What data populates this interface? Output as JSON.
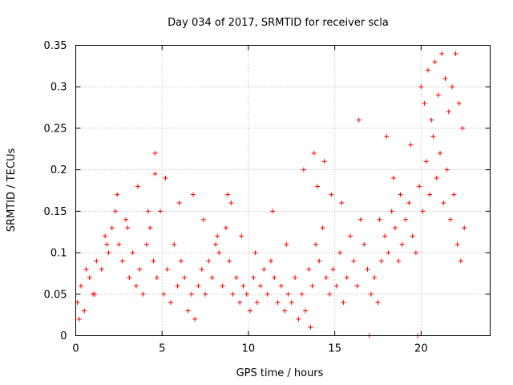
{
  "chart_data": {
    "type": "scatter",
    "title": "Day 034 of 2017, SRMTID for receiver scla",
    "xlabel": "GPS time / hours",
    "ylabel": "SRMTID / TECUs",
    "xlim": [
      0,
      24
    ],
    "ylim": [
      0,
      0.35
    ],
    "x_ticks": [
      0,
      5,
      10,
      15,
      20
    ],
    "x_tick_labels": [
      "0",
      "5",
      "10",
      "15",
      "20"
    ],
    "y_ticks": [
      0,
      0.05,
      0.1,
      0.15,
      0.2,
      0.25,
      0.3,
      0.35
    ],
    "y_tick_labels": [
      "0",
      "0.05",
      "0.1",
      "0.15",
      "0.2",
      "0.25",
      "0.3",
      "0.35"
    ],
    "grid": true,
    "marker": "plus",
    "marker_color": "#ff0000",
    "series": [
      {
        "name": "SRMTID",
        "color": "#ff0000",
        "x": [
          0.1,
          0.3,
          0.5,
          0.8,
          1.0,
          1.2,
          1.5,
          1.7,
          1.9,
          2.1,
          2.3,
          2.5,
          2.7,
          2.9,
          3.1,
          3.3,
          3.5,
          3.7,
          3.9,
          4.1,
          4.3,
          4.5,
          4.7,
          4.9,
          5.1,
          5.3,
          5.5,
          5.7,
          5.9,
          6.1,
          6.3,
          6.5,
          6.7,
          6.9,
          7.1,
          7.3,
          7.5,
          7.7,
          7.9,
          8.1,
          8.3,
          8.5,
          8.7,
          8.9,
          9.1,
          9.3,
          9.5,
          9.7,
          9.9,
          10.1,
          10.3,
          10.5,
          10.7,
          10.9,
          11.1,
          11.3,
          11.5,
          11.7,
          11.9,
          12.1,
          12.3,
          12.5,
          12.7,
          12.9,
          13.1,
          13.3,
          13.5,
          13.7,
          13.9,
          14.1,
          14.3,
          14.5,
          14.7,
          14.9,
          15.1,
          15.3,
          15.5,
          15.7,
          15.9,
          16.1,
          16.3,
          16.5,
          16.7,
          16.9,
          17.1,
          17.3,
          17.5,
          17.7,
          17.9,
          18.1,
          18.3,
          18.5,
          18.7,
          18.9,
          19.1,
          19.3,
          19.5,
          19.7,
          19.9,
          20.1,
          20.3,
          20.5,
          20.7,
          20.9,
          21.1,
          21.3,
          21.5,
          21.7,
          21.9,
          22.1,
          22.3,
          22.5,
          0.2,
          0.6,
          1.1,
          1.8,
          2.4,
          3.0,
          3.6,
          4.2,
          4.6,
          4.6,
          5.2,
          6.0,
          6.8,
          7.4,
          8.2,
          8.8,
          9.0,
          9.6,
          10.4,
          11.4,
          12.2,
          13.2,
          13.6,
          13.8,
          14.0,
          14.4,
          14.8,
          15.4,
          16.4,
          17.0,
          17.6,
          18.0,
          18.4,
          18.8,
          19.4,
          19.8,
          20.0,
          20.2,
          20.4,
          20.6,
          20.8,
          21.0,
          21.2,
          21.4,
          21.6,
          21.8,
          22.0,
          22.2,
          22.4
        ],
        "y": [
          0.04,
          0.06,
          0.03,
          0.07,
          0.05,
          0.09,
          0.08,
          0.12,
          0.1,
          0.13,
          0.15,
          0.11,
          0.09,
          0.14,
          0.07,
          0.1,
          0.06,
          0.08,
          0.05,
          0.11,
          0.13,
          0.09,
          0.07,
          0.15,
          0.05,
          0.08,
          0.04,
          0.11,
          0.06,
          0.09,
          0.07,
          0.03,
          0.05,
          0.02,
          0.06,
          0.08,
          0.05,
          0.09,
          0.07,
          0.11,
          0.1,
          0.06,
          0.13,
          0.09,
          0.05,
          0.07,
          0.04,
          0.06,
          0.05,
          0.03,
          0.07,
          0.04,
          0.06,
          0.08,
          0.05,
          0.09,
          0.07,
          0.04,
          0.06,
          0.03,
          0.05,
          0.04,
          0.07,
          0.02,
          0.05,
          0.03,
          0.08,
          0.06,
          0.11,
          0.09,
          0.13,
          0.07,
          0.05,
          0.08,
          0.06,
          0.1,
          0.04,
          0.07,
          0.12,
          0.09,
          0.06,
          0.14,
          0.11,
          0.08,
          0.05,
          0.07,
          0.04,
          0.09,
          0.12,
          0.1,
          0.15,
          0.13,
          0.09,
          0.11,
          0.14,
          0.16,
          0.12,
          0.1,
          0.18,
          0.15,
          0.21,
          0.17,
          0.24,
          0.19,
          0.22,
          0.16,
          0.2,
          0.14,
          0.17,
          0.11,
          0.09,
          0.13,
          0.02,
          0.08,
          0.05,
          0.11,
          0.17,
          0.13,
          0.18,
          0.15,
          0.22,
          0.195,
          0.19,
          0.16,
          0.17,
          0.14,
          0.12,
          0.17,
          0.16,
          0.12,
          0.1,
          0.15,
          0.11,
          0.2,
          0.01,
          0.22,
          0.18,
          0.21,
          0.17,
          0.16,
          0.26,
          0.0,
          0.14,
          0.24,
          0.19,
          0.17,
          0.23,
          0.0,
          0.3,
          0.28,
          0.32,
          0.26,
          0.33,
          0.29,
          0.34,
          0.31,
          0.27,
          0.3,
          0.34,
          0.28,
          0.25
        ]
      }
    ]
  }
}
